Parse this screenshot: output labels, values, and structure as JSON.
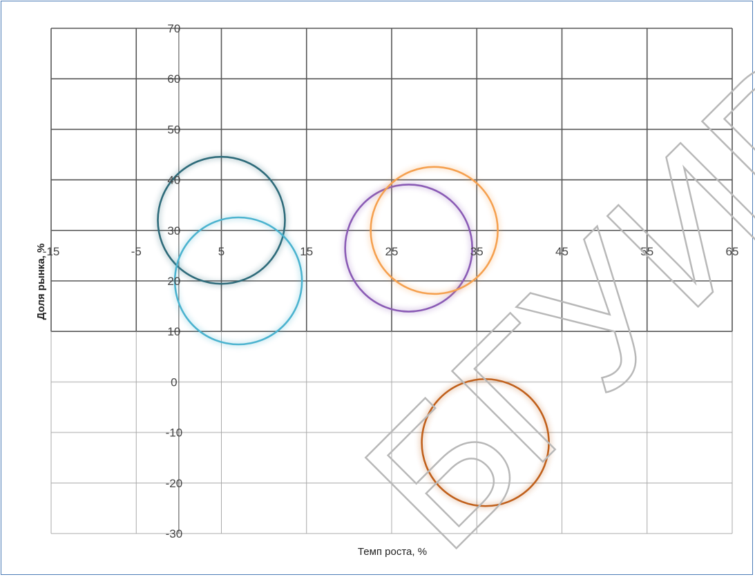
{
  "chart_data": {
    "type": "bubble",
    "xlabel": "Темп роста, %",
    "ylabel": "Доля рынка, %",
    "xlim": [
      -15,
      65
    ],
    "ylim": [
      -30,
      70
    ],
    "x_ticks": [
      "-15",
      "-5",
      "5",
      "15",
      "25",
      "35",
      "45",
      "55",
      "65"
    ],
    "y_ticks": [
      "-30",
      "-20",
      "-10",
      "0",
      "10",
      "20",
      "30",
      "40",
      "50",
      "60",
      "70"
    ],
    "grid": true,
    "series": [
      {
        "x": 5,
        "y": 32,
        "color": "#2e6b7a"
      },
      {
        "x": 7,
        "y": 20,
        "color": "#4bb3cf"
      },
      {
        "x": 27,
        "y": 26.5,
        "color": "#8a5bb5"
      },
      {
        "x": 30,
        "y": 30,
        "color": "#f5a04f"
      },
      {
        "x": 36,
        "y": -12,
        "color": "#c0601b"
      }
    ]
  },
  "watermark": {
    "text": "БГУИР",
    "color": "#b8b8b8"
  }
}
